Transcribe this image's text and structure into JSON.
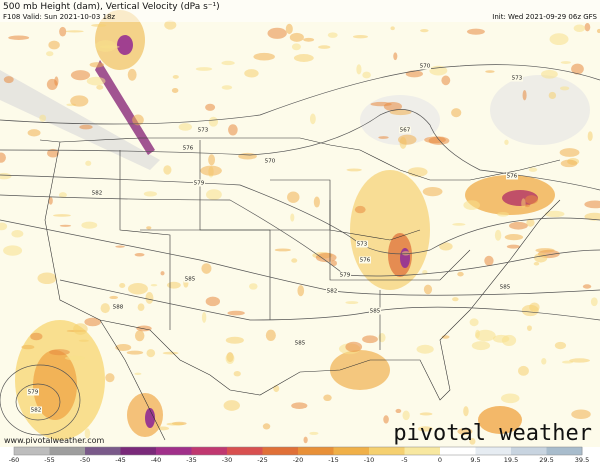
{
  "header": {
    "title": "500 mb Height (dam), Vertical Velocity (dPa s⁻¹)",
    "valid": "F108 Valid: Sun 2021-10-03 18z",
    "init": "Init: Wed 2021-09-29 06z GFS"
  },
  "contour_labels": [
    "570",
    "573",
    "567",
    "573",
    "576",
    "570",
    "579",
    "582",
    "576",
    "573",
    "576",
    "579",
    "582",
    "585",
    "585",
    "585",
    "588",
    "585",
    "579",
    "582"
  ],
  "footer": {
    "website": "www.pivotalweather.com",
    "logo": "pivotal weather"
  },
  "colorbar": {
    "labels": [
      "-60",
      "-55",
      "-50",
      "-45",
      "-40",
      "-35",
      "-30",
      "-25",
      "-20",
      "-15",
      "-10",
      "-5",
      "0",
      "9.5",
      "19.5",
      "29.5",
      "39.5"
    ]
  }
}
